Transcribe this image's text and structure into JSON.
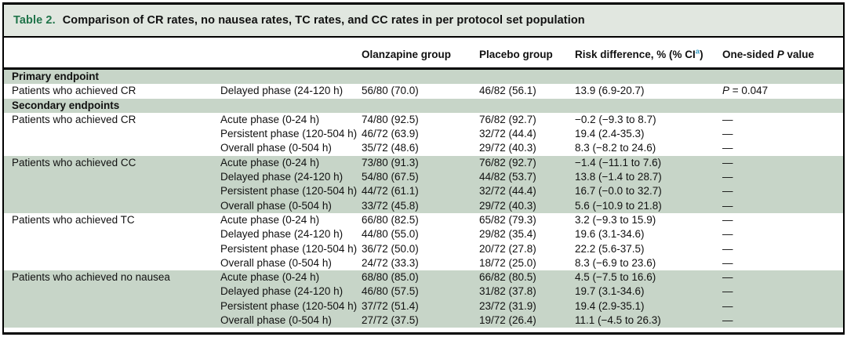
{
  "table": {
    "caption": {
      "number_label": "Table 2.",
      "text": "Comparison of CR rates, no nausea rates, TC rates, and CC rates in per protocol set population"
    },
    "header": {
      "endpoint": "",
      "phase": "",
      "olanzapine": "Olanzapine group",
      "placebo": "Placebo group",
      "risk_pre": "Risk difference, % (% CI",
      "risk_sup": "a",
      "risk_post": ")",
      "p_pre": "One-sided ",
      "p_italic": "P",
      "p_post": " value"
    },
    "colors": {
      "caption_band": "#e1e7e0",
      "shaded_row": "#c7d5c8",
      "table_number_green": "#20744a",
      "superscript_teal": "#3aa0c8"
    },
    "rows": [
      {
        "type": "section",
        "shaded": true,
        "label": "Primary endpoint"
      },
      {
        "type": "data",
        "shaded": false,
        "cells": [
          "Patients who achieved CR",
          "Delayed phase (24-120 h)",
          "56/80 (70.0)",
          "46/82 (56.1)",
          "13.9 (6.9-20.7)"
        ],
        "p_prefix": "P",
        "p_rest": " = 0.047",
        "p_italic": true
      },
      {
        "type": "section",
        "shaded": true,
        "label": "Secondary endpoints"
      },
      {
        "type": "data",
        "shaded": false,
        "cells": [
          "Patients who achieved CR",
          "Acute phase (0-24 h)",
          "74/80 (92.5)",
          "76/82 (92.7)",
          "−0.2 (−9.3 to 8.7)"
        ],
        "p": "—"
      },
      {
        "type": "data",
        "shaded": false,
        "cells": [
          "",
          "Persistent phase (120-504 h)",
          "46/72 (63.9)",
          "32/72 (44.4)",
          "19.4 (2.4-35.3)"
        ],
        "p": "—"
      },
      {
        "type": "data",
        "shaded": false,
        "cells": [
          "",
          "Overall phase (0-504 h)",
          "35/72 (48.6)",
          "29/72 (40.3)",
          "8.3 (−8.2 to 24.6)"
        ],
        "p": "—"
      },
      {
        "type": "data",
        "shaded": true,
        "cells": [
          "Patients who achieved CC",
          "Acute phase (0-24 h)",
          "73/80 (91.3)",
          "76/82 (92.7)",
          "−1.4 (−11.1 to 7.6)"
        ],
        "p": "—"
      },
      {
        "type": "data",
        "shaded": true,
        "cells": [
          "",
          "Delayed phase (24-120 h)",
          "54/80 (67.5)",
          "44/82 (53.7)",
          "13.8 (−1.4 to 28.7)"
        ],
        "p": "—"
      },
      {
        "type": "data",
        "shaded": true,
        "cells": [
          "",
          "Persistent phase (120-504 h)",
          "44/72 (61.1)",
          "32/72 (44.4)",
          "16.7 (−0.0 to 32.7)"
        ],
        "p": "—"
      },
      {
        "type": "data",
        "shaded": true,
        "cells": [
          "",
          "Overall phase (0-504 h)",
          "33/72 (45.8)",
          "29/72 (40.3)",
          "5.6 (−10.9 to 21.8)"
        ],
        "p": "—"
      },
      {
        "type": "data",
        "shaded": false,
        "cells": [
          "Patients who achieved TC",
          "Acute phase (0-24 h)",
          "66/80 (82.5)",
          "65/82 (79.3)",
          "3.2 (−9.3 to 15.9)"
        ],
        "p": "—"
      },
      {
        "type": "data",
        "shaded": false,
        "cells": [
          "",
          "Delayed phase (24-120 h)",
          "44/80 (55.0)",
          "29/82 (35.4)",
          "19.6 (3.1-34.6)"
        ],
        "p": "—"
      },
      {
        "type": "data",
        "shaded": false,
        "cells": [
          "",
          "Persistent phase (120-504 h)",
          "36/72 (50.0)",
          "20/72 (27.8)",
          "22.2 (5.6-37.5)"
        ],
        "p": "—"
      },
      {
        "type": "data",
        "shaded": false,
        "cells": [
          "",
          "Overall phase (0-504 h)",
          "24/72 (33.3)",
          "18/72 (25.0)",
          "8.3 (−6.9 to 23.6)"
        ],
        "p": "—"
      },
      {
        "type": "data",
        "shaded": true,
        "cells": [
          "Patients who achieved no nausea",
          "Acute phase (0-24 h)",
          "68/80 (85.0)",
          "66/82 (80.5)",
          "4.5 (−7.5 to 16.6)"
        ],
        "p": "—"
      },
      {
        "type": "data",
        "shaded": true,
        "cells": [
          "",
          "Delayed phase (24-120 h)",
          "46/80 (57.5)",
          "31/82 (37.8)",
          "19.7 (3.1-34.6)"
        ],
        "p": "—"
      },
      {
        "type": "data",
        "shaded": true,
        "cells": [
          "",
          "Persistent phase (120-504 h)",
          "37/72 (51.4)",
          "23/72 (31.9)",
          "19.4 (2.9-35.1)"
        ],
        "p": "—"
      },
      {
        "type": "data",
        "shaded": true,
        "cells": [
          "",
          "Overall phase (0-504 h)",
          "27/72 (37.5)",
          "19/72 (26.4)",
          "11.1 (−4.5 to 26.3)"
        ],
        "p": "—"
      }
    ]
  }
}
